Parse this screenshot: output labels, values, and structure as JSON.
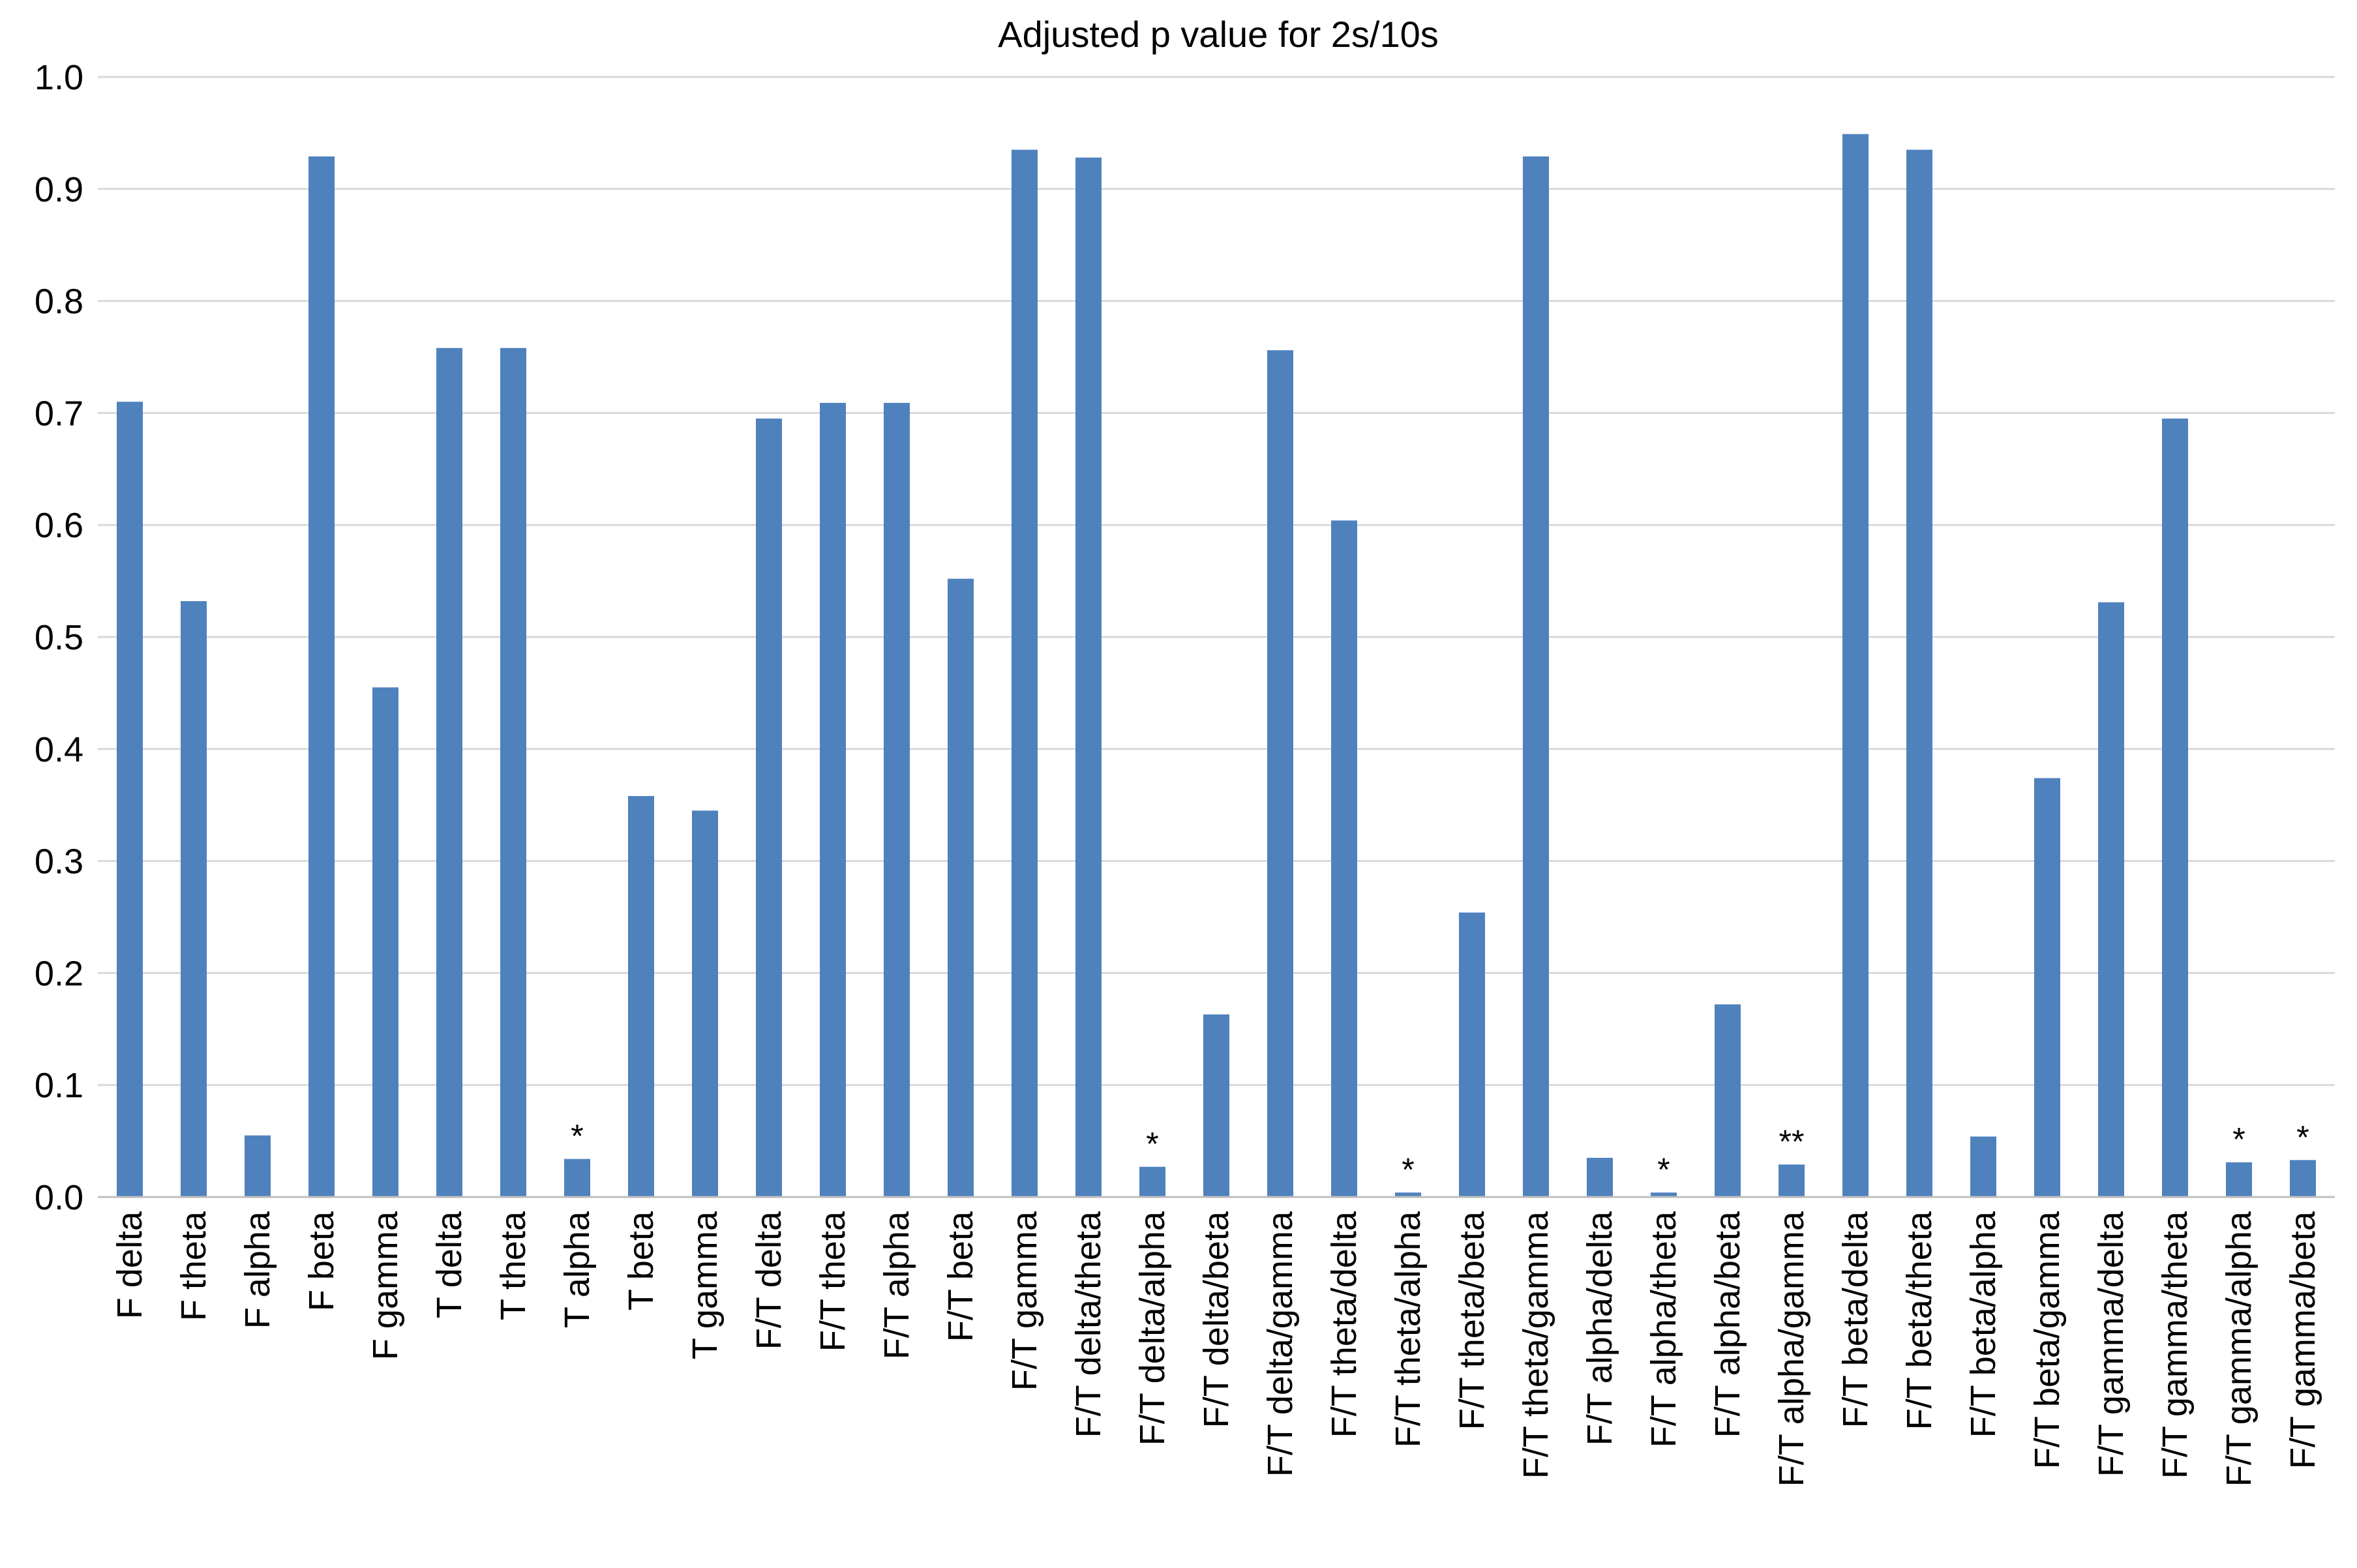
{
  "chart_data": {
    "type": "bar",
    "title": "Adjusted p value for 2s/10s",
    "xlabel": "",
    "ylabel": "",
    "ylim": [
      0,
      1.0
    ],
    "yticks": [
      "0.0",
      "0.1",
      "0.2",
      "0.3",
      "0.4",
      "0.5",
      "0.6",
      "0.7",
      "0.8",
      "0.9",
      "1.0"
    ],
    "grid": true,
    "legend": "none",
    "bar_color": "#4f81bd",
    "grid_color": "#d9d9d9",
    "categories": [
      "F delta",
      "F theta",
      "F alpha",
      "F beta",
      "F gamma",
      "T delta",
      "T theta",
      "T alpha",
      "T beta",
      "T gamma",
      "F/T delta",
      "F/T theta",
      "F/T alpha",
      "F/T beta",
      "F/T gamma",
      "F/T delta/theta",
      "F/T delta/alpha",
      "F/T delta/beta",
      "F/T delta/gamma",
      "F/T theta/delta",
      "F/T theta/alpha",
      "F/T theta/beta",
      "F/T theta/gamma",
      "F/T alpha/delta",
      "F/T alpha/theta",
      "F/T alpha/beta",
      "F/T alpha/gamma",
      "F/T beta/delta",
      "F/T beta/theta",
      "F/T beta/alpha",
      "F/T beta/gamma",
      "F/T gamma/delta",
      "F/T gamma/theta",
      "F/T gamma/alpha",
      "F/T gamma/beta"
    ],
    "values": [
      0.71,
      0.532,
      0.055,
      0.929,
      0.455,
      0.758,
      0.758,
      0.034,
      0.358,
      0.345,
      0.695,
      0.709,
      0.709,
      0.552,
      0.935,
      0.928,
      0.027,
      0.163,
      0.756,
      0.604,
      0.004,
      0.254,
      0.929,
      0.035,
      0.004,
      0.172,
      0.029,
      0.949,
      0.935,
      0.054,
      0.374,
      0.531,
      0.695,
      0.031,
      0.033
    ],
    "annotations": [
      "",
      "",
      "",
      "",
      "",
      "",
      "",
      "*",
      "",
      "",
      "",
      "",
      "",
      "",
      "",
      "",
      "*",
      "",
      "",
      "",
      "*",
      "",
      "",
      "",
      "*",
      "",
      "**",
      "",
      "",
      "",
      "",
      "",
      "",
      "*",
      "*"
    ]
  }
}
